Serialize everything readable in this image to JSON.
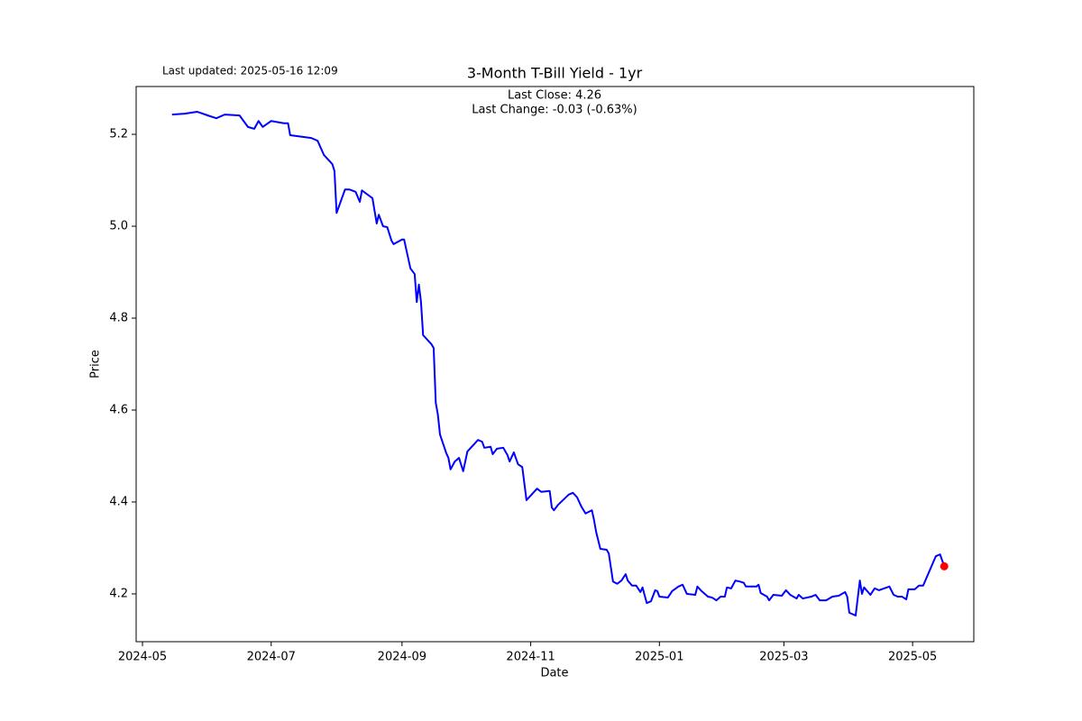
{
  "chart_data": {
    "type": "line",
    "title": "3-Month T-Bill Yield - 1yr",
    "annotations": [
      "Last Close: 4.26",
      "Last Change: -0.03 (-0.63%)"
    ],
    "updated": "Last updated: 2025-05-16 12:09",
    "xlabel": "Date",
    "ylabel": "Price",
    "color": "#0000ff",
    "marker_color": "#ff0000",
    "x": [
      "2024-05-15",
      "2024-05-21",
      "2024-05-27",
      "2024-06-01",
      "2024-06-05",
      "2024-06-09",
      "2024-06-16",
      "2024-06-20",
      "2024-06-23",
      "2024-06-25",
      "2024-06-27",
      "2024-07-01",
      "2024-07-07",
      "2024-07-09",
      "2024-07-10",
      "2024-07-20",
      "2024-07-23",
      "2024-07-26",
      "2024-07-30",
      "2024-07-31",
      "2024-08-01",
      "2024-08-05",
      "2024-08-07",
      "2024-08-10",
      "2024-08-12",
      "2024-08-13",
      "2024-08-18",
      "2024-08-20",
      "2024-08-21",
      "2024-08-23",
      "2024-08-25",
      "2024-08-27",
      "2024-08-28",
      "2024-09-01",
      "2024-09-02",
      "2024-09-05",
      "2024-09-07",
      "2024-09-08",
      "2024-09-09",
      "2024-09-10",
      "2024-09-11",
      "2024-09-15",
      "2024-09-16",
      "2024-09-17",
      "2024-09-18",
      "2024-09-19",
      "2024-09-22",
      "2024-09-23",
      "2024-09-24",
      "2024-09-26",
      "2024-09-28",
      "2024-09-30",
      "2024-10-02",
      "2024-10-07",
      "2024-10-09",
      "2024-10-10",
      "2024-10-13",
      "2024-10-14",
      "2024-10-16",
      "2024-10-19",
      "2024-10-21",
      "2024-10-22",
      "2024-10-24",
      "2024-10-26",
      "2024-10-28",
      "2024-10-30",
      "2024-11-04",
      "2024-11-06",
      "2024-11-10",
      "2024-11-11",
      "2024-11-12",
      "2024-11-14",
      "2024-11-19",
      "2024-11-21",
      "2024-11-23",
      "2024-11-25",
      "2024-11-27",
      "2024-11-30",
      "2024-12-01",
      "2024-12-02",
      "2024-12-04",
      "2024-12-07",
      "2024-12-08",
      "2024-12-10",
      "2024-12-12",
      "2024-12-14",
      "2024-12-16",
      "2024-12-17",
      "2024-12-19",
      "2024-12-21",
      "2024-12-23",
      "2024-12-24",
      "2024-12-26",
      "2024-12-28",
      "2024-12-30",
      "2024-12-31",
      "2025-01-01",
      "2025-01-05",
      "2025-01-07",
      "2025-01-10",
      "2025-01-12",
      "2025-01-14",
      "2025-01-18",
      "2025-01-19",
      "2025-01-21",
      "2025-01-24",
      "2025-01-26",
      "2025-01-28",
      "2025-01-30",
      "2025-02-01",
      "2025-02-02",
      "2025-02-04",
      "2025-02-06",
      "2025-02-08",
      "2025-02-10",
      "2025-02-11",
      "2025-02-16",
      "2025-02-17",
      "2025-02-18",
      "2025-02-21",
      "2025-02-22",
      "2025-02-24",
      "2025-02-28",
      "2025-03-02",
      "2025-03-04",
      "2025-03-07",
      "2025-03-08",
      "2025-03-10",
      "2025-03-14",
      "2025-03-16",
      "2025-03-18",
      "2025-03-21",
      "2025-03-24",
      "2025-03-27",
      "2025-03-30",
      "2025-03-31",
      "2025-04-01",
      "2025-04-04",
      "2025-04-06",
      "2025-04-07",
      "2025-04-08",
      "2025-04-11",
      "2025-04-13",
      "2025-04-15",
      "2025-04-20",
      "2025-04-22",
      "2025-04-24",
      "2025-04-26",
      "2025-04-28",
      "2025-04-29",
      "2025-05-02",
      "2025-05-04",
      "2025-05-06",
      "2025-05-12",
      "2025-05-14",
      "2025-05-16"
    ],
    "values": [
      5.243,
      5.245,
      5.249,
      5.241,
      5.235,
      5.243,
      5.241,
      5.216,
      5.212,
      5.229,
      5.216,
      5.229,
      5.224,
      5.224,
      5.198,
      5.192,
      5.186,
      5.155,
      5.135,
      5.12,
      5.029,
      5.08,
      5.08,
      5.075,
      5.053,
      5.078,
      5.061,
      5.006,
      5.025,
      5.0,
      4.998,
      4.969,
      4.961,
      4.971,
      4.971,
      4.908,
      4.896,
      4.835,
      4.873,
      4.835,
      4.763,
      4.743,
      4.735,
      4.616,
      4.59,
      4.547,
      4.506,
      4.496,
      4.471,
      4.488,
      4.496,
      4.467,
      4.51,
      4.535,
      4.531,
      4.518,
      4.52,
      4.504,
      4.516,
      4.518,
      4.502,
      4.488,
      4.508,
      4.482,
      4.476,
      4.404,
      4.429,
      4.422,
      4.424,
      4.388,
      4.382,
      4.394,
      4.416,
      4.42,
      4.41,
      4.39,
      4.375,
      4.382,
      4.361,
      4.335,
      4.298,
      4.296,
      4.288,
      4.227,
      4.222,
      4.229,
      4.243,
      4.229,
      4.218,
      4.218,
      4.204,
      4.214,
      4.18,
      4.184,
      4.208,
      4.206,
      4.194,
      4.192,
      4.206,
      4.216,
      4.22,
      4.2,
      4.198,
      4.216,
      4.206,
      4.194,
      4.192,
      4.186,
      4.194,
      4.194,
      4.214,
      4.212,
      4.229,
      4.227,
      4.224,
      4.216,
      4.216,
      4.22,
      4.202,
      4.194,
      4.186,
      4.198,
      4.196,
      4.208,
      4.198,
      4.19,
      4.198,
      4.19,
      4.194,
      4.198,
      4.186,
      4.186,
      4.194,
      4.196,
      4.204,
      4.194,
      4.159,
      4.153,
      4.229,
      4.2,
      4.214,
      4.198,
      4.212,
      4.208,
      4.216,
      4.198,
      4.194,
      4.194,
      4.188,
      4.21,
      4.21,
      4.218,
      4.218,
      4.282,
      4.286,
      4.26
    ],
    "xlim": [
      "2024-04-28",
      "2025-05-30"
    ],
    "xticks": [
      "2024-05",
      "2024-07",
      "2024-09",
      "2024-11",
      "2025-01",
      "2025-03",
      "2025-05"
    ],
    "ylim": [
      4.096,
      5.304
    ],
    "yticks": [
      4.2,
      4.4,
      4.6,
      4.8,
      5.0,
      5.2
    ]
  }
}
